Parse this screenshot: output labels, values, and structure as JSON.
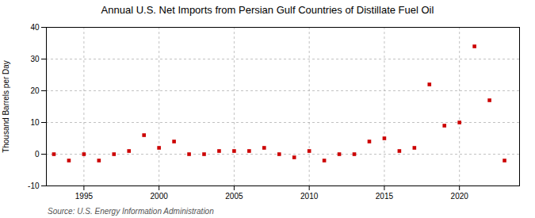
{
  "chart_data": {
    "type": "scatter",
    "title": "Annual U.S. Net Imports from Persian Gulf Countries of Distillate Fuel Oil",
    "ylabel": "Thousand Barrels per Day",
    "source": "Source: U.S. Energy Information Administration",
    "x": [
      1993,
      1994,
      1995,
      1996,
      1997,
      1998,
      1999,
      2000,
      2001,
      2002,
      2003,
      2004,
      2005,
      2006,
      2007,
      2008,
      2009,
      2010,
      2011,
      2012,
      2013,
      2014,
      2015,
      2016,
      2017,
      2018,
      2019,
      2020,
      2021,
      2022,
      2023
    ],
    "values": [
      0,
      -2,
      0,
      -2,
      0,
      1,
      6,
      2,
      4,
      0,
      0,
      1,
      1,
      1,
      2,
      0,
      -1,
      1,
      -2,
      0,
      0,
      4,
      5,
      1,
      2,
      22,
      9,
      10,
      34,
      17,
      -2
    ],
    "color": "#cc0000",
    "marker": "square",
    "xlim": [
      1992.5,
      2024
    ],
    "xticks": [
      1995,
      2000,
      2005,
      2010,
      2015,
      2020
    ],
    "ylim": [
      -10,
      40
    ],
    "yticks": [
      -10,
      0,
      10,
      20,
      30,
      40
    ],
    "grid": true
  }
}
